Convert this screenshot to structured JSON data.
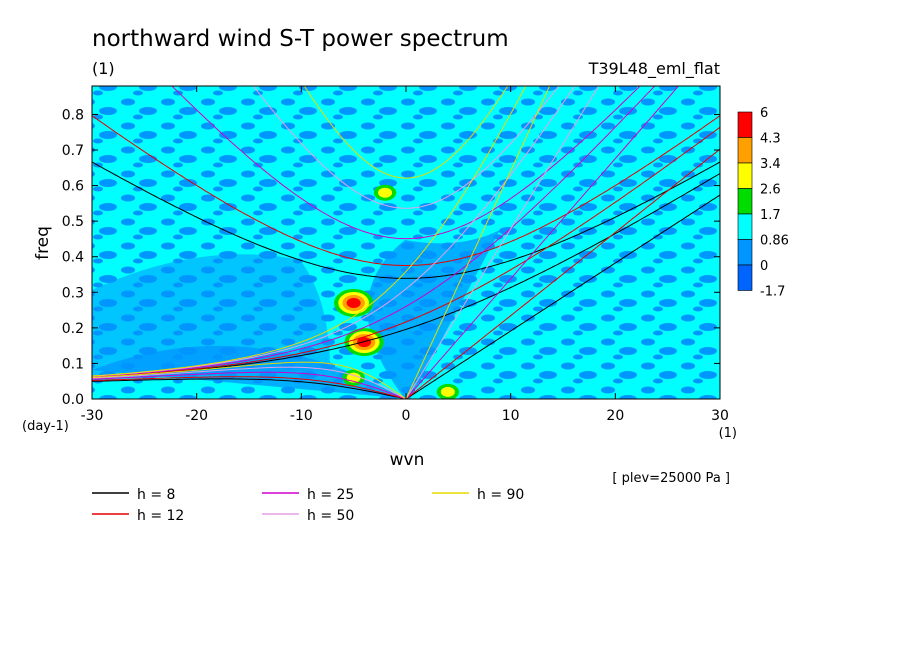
{
  "chart_data": {
    "type": "heatmap",
    "title": "northward wind S-T power spectrum",
    "subtitle_left": "(1)",
    "subtitle_right": "T39L48_eml_flat",
    "xlabel": "wvn",
    "ylabel": "freq",
    "x_unit": "(1)",
    "y_unit": "(day-1)",
    "xlim": [
      -30,
      30
    ],
    "ylim": [
      0,
      0.88
    ],
    "x_ticks": [
      "-30",
      "-20",
      "-10",
      "0",
      "10",
      "20",
      "30"
    ],
    "y_ticks": [
      "0.0",
      "0.1",
      "0.2",
      "0.3",
      "0.4",
      "0.5",
      "0.6",
      "0.7",
      "0.8"
    ],
    "level_note": "[ plev=25000 Pa ]",
    "colorbar": {
      "labels": [
        "6",
        "4.3",
        "3.4",
        "2.6",
        "1.7",
        "0.86",
        "0",
        "-1.7"
      ],
      "colors": [
        "#ff0000",
        "#ffa000",
        "#ffff00",
        "#00dc00",
        "#00ffff",
        "#0096ff",
        "#0064ff"
      ]
    },
    "series": [
      {
        "name": "h =  8",
        "h": 8,
        "color": "#000000"
      },
      {
        "name": "h = 12",
        "h": 12,
        "color": "#e60000"
      },
      {
        "name": "h = 25",
        "h": 25,
        "color": "#d200c8"
      },
      {
        "name": "h = 50",
        "h": 50,
        "color": "#e6a0e6"
      },
      {
        "name": "h = 90",
        "h": 90,
        "color": "#e6dc00"
      }
    ],
    "features": [
      {
        "wvn": -5,
        "freq": 0.27,
        "level": "peak"
      },
      {
        "wvn": -4,
        "freq": 0.16,
        "level": "peak"
      },
      {
        "wvn": -2,
        "freq": 0.58,
        "level": "high"
      },
      {
        "wvn": -5,
        "freq": 0.06,
        "level": "high"
      },
      {
        "wvn": 4,
        "freq": 0.02,
        "level": "high"
      }
    ]
  }
}
